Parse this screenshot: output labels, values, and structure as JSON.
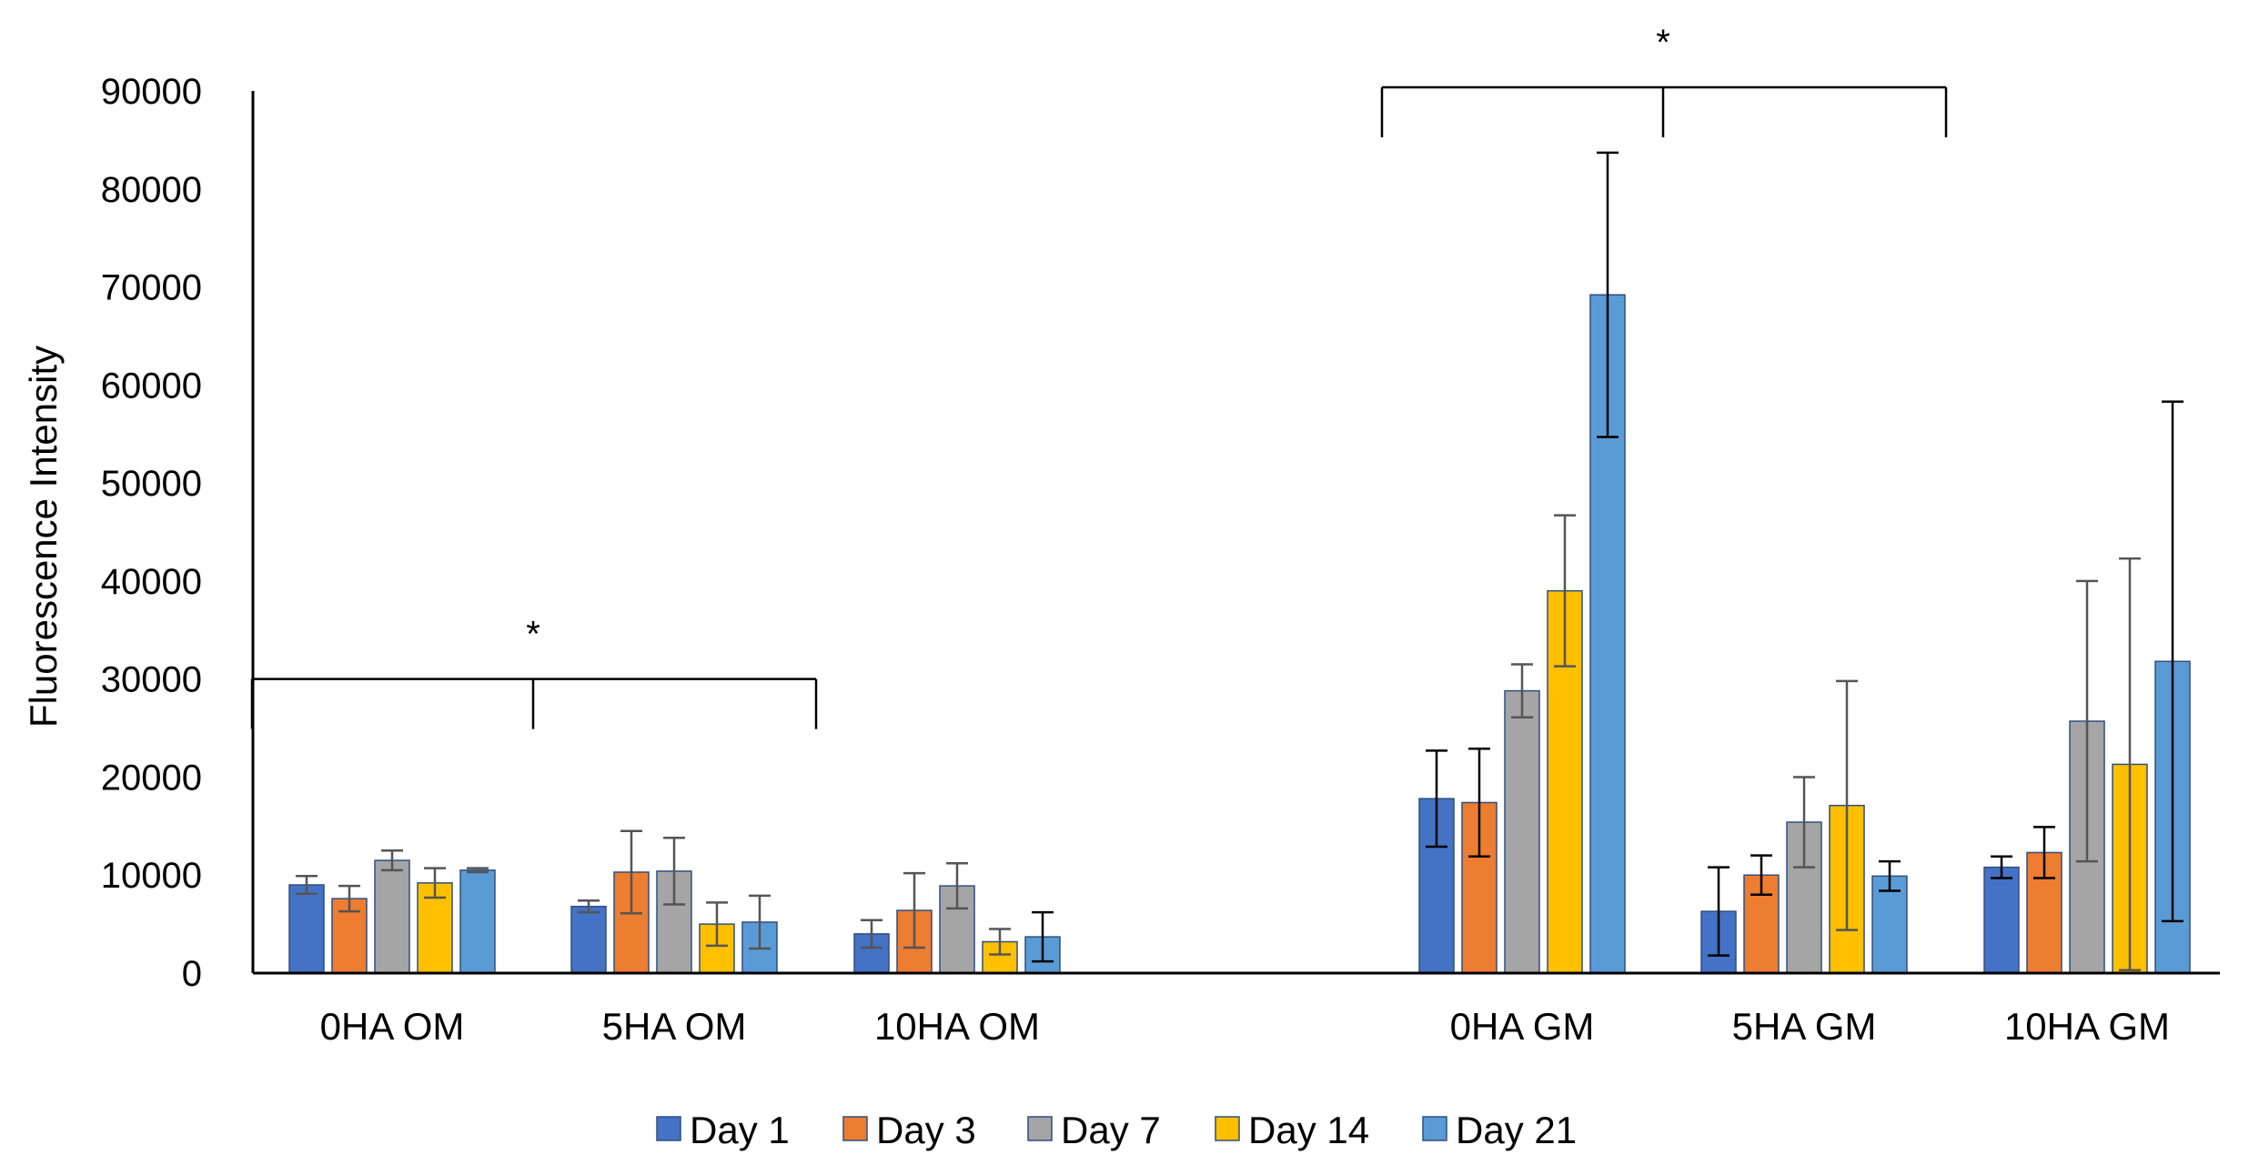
{
  "chart_data": {
    "type": "bar",
    "title": "",
    "xlabel": "",
    "ylabel": "Fluorescence Intensity",
    "ylim": [
      0,
      90000
    ],
    "yticks": [
      0,
      10000,
      20000,
      30000,
      40000,
      50000,
      60000,
      70000,
      80000,
      90000
    ],
    "grid": false,
    "legend_position": "bottom",
    "categories": [
      "0HA OM",
      "5HA OM",
      "10HA OM",
      "0HA GM",
      "5HA GM",
      "10HA GM"
    ],
    "series": [
      {
        "name": "Day 1",
        "color": "#4472C4",
        "values": [
          9000,
          6800,
          4000,
          17800,
          6300,
          10800
        ],
        "errors": [
          900,
          600,
          1400,
          4900,
          4500,
          1100
        ]
      },
      {
        "name": "Day 3",
        "color": "#ED7D31",
        "values": [
          7600,
          10300,
          6400,
          17400,
          10000,
          12300
        ],
        "errors": [
          1300,
          4200,
          3800,
          5500,
          2000,
          2600
        ]
      },
      {
        "name": "Day 7",
        "color": "#A5A5A5",
        "values": [
          11500,
          10400,
          8900,
          28800,
          15400,
          25700
        ],
        "errors": [
          1000,
          3400,
          2300,
          2700,
          4600,
          14300
        ]
      },
      {
        "name": "Day 14",
        "color": "#FFC000",
        "values": [
          9200,
          5000,
          3200,
          39000,
          17100,
          21300
        ],
        "errors": [
          1500,
          2200,
          1300,
          7700,
          12700,
          21000
        ]
      },
      {
        "name": "Day 21",
        "color": "#5B9BD5",
        "values": [
          10500,
          5200,
          3700,
          69200,
          9900,
          31800
        ],
        "errors": [
          200,
          2700,
          2500,
          14500,
          1500,
          26500
        ]
      }
    ],
    "annotations": [
      {
        "text": "*",
        "from_category": 0,
        "mid_category": 1,
        "to_category": 2,
        "level": 30000
      },
      {
        "text": "*",
        "from_category": 3,
        "mid_category": 4,
        "to_category": 5,
        "level": 90000
      }
    ]
  }
}
